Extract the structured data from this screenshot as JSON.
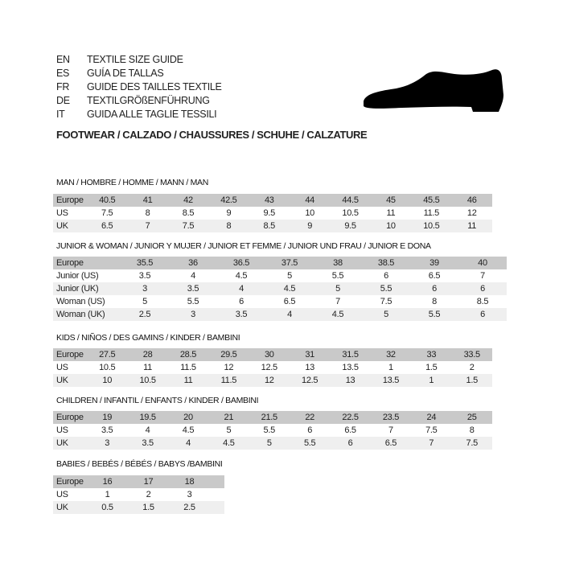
{
  "header": {
    "languages": [
      {
        "code": "EN",
        "name": "TEXTILE SIZE GUIDE"
      },
      {
        "code": "ES",
        "name": "GUÍA DE TALLAS"
      },
      {
        "code": "FR",
        "name": "GUIDE DES TAILLES TEXTILE"
      },
      {
        "code": "DE",
        "name": "TEXTILGRÖßENFÜHRUNG"
      },
      {
        "code": "IT",
        "name": "GUIDA ALLE TAGLIE TESSILI"
      }
    ],
    "subtitle": "FOOTWEAR / CALZADO / CHAUSSURES / SCHUHE / CALZATURE",
    "icon": "shoe-silhouette-icon"
  },
  "tables": [
    {
      "title": "MAN / HOMBRE / HOMME / MANN / MAN",
      "rows": [
        {
          "label": "Europe",
          "values": [
            "40.5",
            "41",
            "42",
            "42.5",
            "43",
            "44",
            "44.5",
            "45",
            "45.5",
            "46"
          ]
        },
        {
          "label": "US",
          "values": [
            "7.5",
            "8",
            "8.5",
            "9",
            "9.5",
            "10",
            "10.5",
            "11",
            "11.5",
            "12"
          ]
        },
        {
          "label": "UK",
          "values": [
            "6.5",
            "7",
            "7.5",
            "8",
            "8.5",
            "9",
            "9.5",
            "10",
            "10.5",
            "11"
          ]
        }
      ]
    },
    {
      "title": "JUNIOR & WOMAN / JUNIOR Y MUJER / JUNIOR ET FEMME / JUNIOR UND FRAU / JUNIOR E DONA",
      "rows": [
        {
          "label": "Europe",
          "values": [
            "35.5",
            "36",
            "36.5",
            "37.5",
            "38",
            "38.5",
            "39",
            "40"
          ]
        },
        {
          "label": "Junior (US)",
          "values": [
            "3.5",
            "4",
            "4.5",
            "5",
            "5.5",
            "6",
            "6.5",
            "7"
          ]
        },
        {
          "label": "Junior (UK)",
          "values": [
            "3",
            "3.5",
            "4",
            "4.5",
            "5",
            "5.5",
            "6",
            "6"
          ]
        },
        {
          "label": "Woman (US)",
          "values": [
            "5",
            "5.5",
            "6",
            "6.5",
            "7",
            "7.5",
            "8",
            "8.5"
          ]
        },
        {
          "label": "Woman (UK)",
          "values": [
            "2.5",
            "3",
            "3.5",
            "4",
            "4.5",
            "5",
            "5.5",
            "6"
          ]
        }
      ]
    },
    {
      "title": "KIDS / NIÑOS / DES GAMINS / KINDER / BAMBINI",
      "rows": [
        {
          "label": "Europe",
          "values": [
            "27.5",
            "28",
            "28.5",
            "29.5",
            "30",
            "31",
            "31.5",
            "32",
            "33",
            "33.5"
          ]
        },
        {
          "label": "US",
          "values": [
            "10.5",
            "11",
            "11.5",
            "12",
            "12.5",
            "13",
            "13.5",
            "1",
            "1.5",
            "2"
          ]
        },
        {
          "label": "UK",
          "values": [
            "10",
            "10.5",
            "11",
            "11.5",
            "12",
            "12.5",
            "13",
            "13.5",
            "1",
            "1.5"
          ]
        }
      ]
    },
    {
      "title": "CHILDREN / INFANTIL / ENFANTS / KINDER / BAMBINI",
      "rows": [
        {
          "label": "Europe",
          "values": [
            "19",
            "19.5",
            "20",
            "21",
            "21.5",
            "22",
            "22.5",
            "23.5",
            "24",
            "25"
          ]
        },
        {
          "label": "US",
          "values": [
            "3.5",
            "4",
            "4.5",
            "5",
            "5.5",
            "6",
            "6.5",
            "7",
            "7.5",
            "8"
          ]
        },
        {
          "label": "UK",
          "values": [
            "3",
            "3.5",
            "4",
            "4.5",
            "5",
            "5.5",
            "6",
            "6.5",
            "7",
            "7.5"
          ]
        }
      ]
    },
    {
      "title": "BABIES  / BEBÉS / BÉBÉS / BABYS /BAMBINI",
      "rows": [
        {
          "label": "Europe",
          "values": [
            "16",
            "17",
            "18"
          ]
        },
        {
          "label": "US",
          "values": [
            "1",
            "2",
            "3"
          ]
        },
        {
          "label": "UK",
          "values": [
            "0.5",
            "1.5",
            "2.5"
          ]
        }
      ]
    }
  ]
}
